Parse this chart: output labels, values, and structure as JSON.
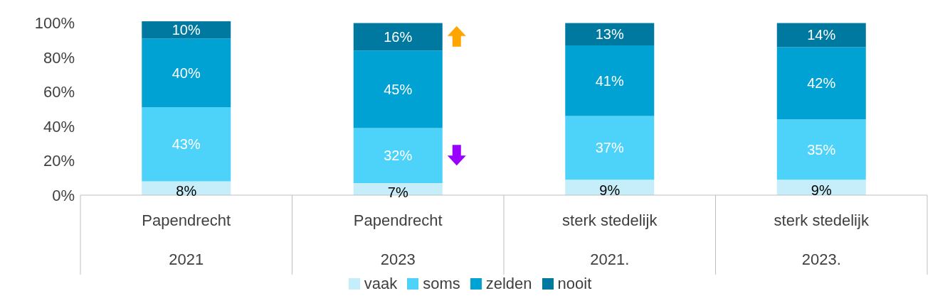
{
  "chart_data": {
    "type": "bar",
    "stacked": true,
    "categories": [
      "Papendrecht\n2021",
      "Papendrecht\n2023",
      "sterk stedelijk\n2021.",
      "sterk stedelijk\n2023."
    ],
    "series": [
      {
        "name": "vaak",
        "color": "#c5eefa",
        "values": [
          8,
          7,
          9,
          9
        ],
        "value_labels": [
          "8%",
          "7%",
          "9%",
          "9%"
        ]
      },
      {
        "name": "soms",
        "color": "#4dd3f9",
        "values": [
          43,
          32,
          37,
          35
        ],
        "value_labels": [
          "43%",
          "32%",
          "37%",
          "35%"
        ]
      },
      {
        "name": "zelden",
        "color": "#00a1d3",
        "values": [
          40,
          45,
          41,
          42
        ],
        "value_labels": [
          "40%",
          "45%",
          "41%",
          "42%"
        ]
      },
      {
        "name": "nooit",
        "color": "#0079a0",
        "values": [
          10,
          16,
          13,
          14
        ],
        "value_labels": [
          "10%",
          "16%",
          "13%",
          "14%"
        ]
      }
    ],
    "ylim": [
      0,
      101
    ],
    "yticks": [
      {
        "value": 0,
        "label": "0%"
      },
      {
        "value": 20,
        "label": "20%"
      },
      {
        "value": 40,
        "label": "40%"
      },
      {
        "value": 60,
        "label": "60%"
      },
      {
        "value": 80,
        "label": "80%"
      },
      {
        "value": 100,
        "label": "100%"
      }
    ],
    "grid": false,
    "legend": "bottom"
  }
}
